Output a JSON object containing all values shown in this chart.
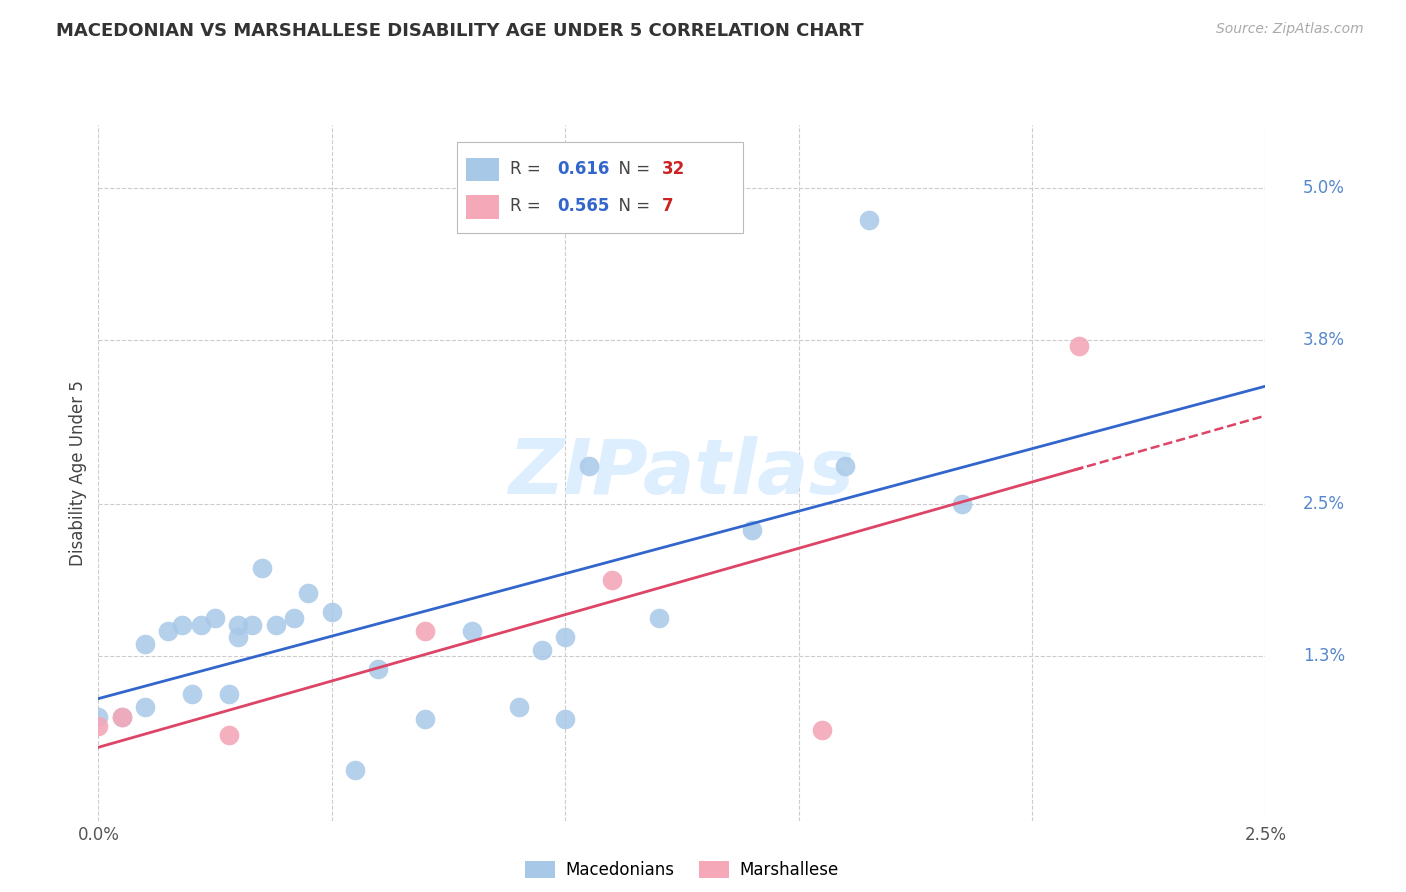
{
  "title": "MACEDONIAN VS MARSHALLESE DISABILITY AGE UNDER 5 CORRELATION CHART",
  "source": "Source: ZipAtlas.com",
  "ylabel": "Disability Age Under 5",
  "xlim": [
    0.0,
    0.025
  ],
  "ylim": [
    0.0,
    0.055
  ],
  "xticks": [
    0.0,
    0.005,
    0.01,
    0.015,
    0.02,
    0.025
  ],
  "xticklabels": [
    "0.0%",
    "",
    "",
    "",
    "",
    "2.5%"
  ],
  "yticks": [
    0.0,
    0.013,
    0.025,
    0.038,
    0.05
  ],
  "yticklabels": [
    "",
    "1.3%",
    "2.5%",
    "3.8%",
    "5.0%"
  ],
  "macedonian_r": "0.616",
  "macedonian_n": "32",
  "marshallese_r": "0.565",
  "marshallese_n": "7",
  "mac_color": "#a8c8e8",
  "marsh_color": "#f4a8b8",
  "mac_line_color": "#3366cc",
  "marsh_line_color": "#dd4466",
  "legend_r_color": "#3366cc",
  "legend_n_color": "#cc2222",
  "watermark_color": "#ddeeff",
  "macedonian_x": [
    0.0,
    0.0005,
    0.001,
    0.001,
    0.0015,
    0.0018,
    0.002,
    0.0022,
    0.0025,
    0.0028,
    0.003,
    0.003,
    0.0033,
    0.0035,
    0.0038,
    0.0042,
    0.0045,
    0.005,
    0.0055,
    0.006,
    0.007,
    0.008,
    0.009,
    0.0095,
    0.01,
    0.01,
    0.0105,
    0.012,
    0.014,
    0.016,
    0.0165,
    0.0185
  ],
  "macedonian_y": [
    0.0082,
    0.0082,
    0.009,
    0.014,
    0.015,
    0.0155,
    0.01,
    0.0155,
    0.016,
    0.01,
    0.0145,
    0.0155,
    0.0155,
    0.02,
    0.0155,
    0.016,
    0.018,
    0.0165,
    0.004,
    0.012,
    0.008,
    0.015,
    0.009,
    0.0135,
    0.0145,
    0.008,
    0.028,
    0.016,
    0.023,
    0.028,
    0.0475,
    0.025
  ],
  "marshallese_x": [
    0.0,
    0.0005,
    0.0028,
    0.007,
    0.011,
    0.0155,
    0.021
  ],
  "marshallese_y": [
    0.0075,
    0.0082,
    0.0068,
    0.015,
    0.019,
    0.0072,
    0.0375
  ],
  "background_color": "#ffffff",
  "grid_color": "#cccccc"
}
